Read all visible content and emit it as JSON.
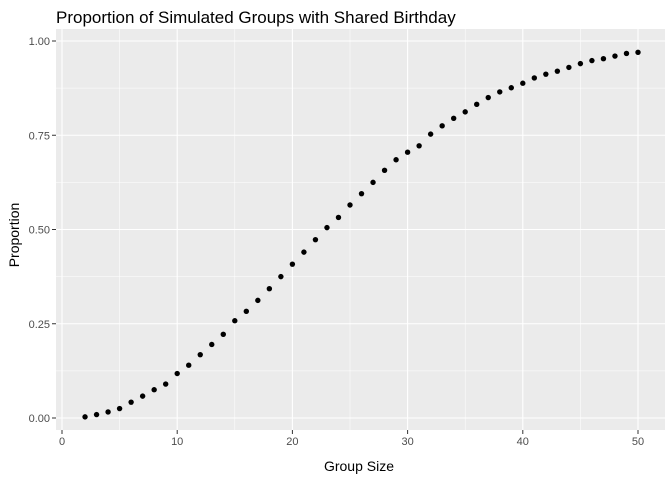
{
  "chart_data": {
    "type": "scatter",
    "title": "Proportion of Simulated Groups with Shared Birthday",
    "xlabel": "Group Size",
    "ylabel": "Proportion",
    "xlim": [
      0,
      52
    ],
    "ylim": [
      -0.01,
      1.03
    ],
    "x_ticks": [
      0,
      10,
      20,
      30,
      40,
      50
    ],
    "x_tick_labels": [
      "0",
      "10",
      "20",
      "30",
      "40",
      "50"
    ],
    "y_ticks": [
      0,
      0.25,
      0.5,
      0.75,
      1
    ],
    "y_tick_labels": [
      "0.00",
      "0.25",
      "0.50",
      "0.75",
      "1.00"
    ],
    "grid": true,
    "legend": "none",
    "colors": {
      "panel": "#ebebeb",
      "grid": "#ffffff",
      "point": "#000000"
    },
    "x": [
      2,
      3,
      4,
      5,
      6,
      7,
      8,
      9,
      10,
      11,
      12,
      13,
      14,
      15,
      16,
      17,
      18,
      19,
      20,
      21,
      22,
      23,
      24,
      25,
      26,
      27,
      28,
      29,
      30,
      31,
      32,
      33,
      34,
      35,
      36,
      37,
      38,
      39,
      40,
      41,
      42,
      43,
      44,
      45,
      46,
      47,
      48,
      49,
      50
    ],
    "y": [
      0.003,
      0.009,
      0.016,
      0.025,
      0.042,
      0.058,
      0.075,
      0.09,
      0.118,
      0.14,
      0.168,
      0.195,
      0.222,
      0.258,
      0.283,
      0.312,
      0.343,
      0.375,
      0.408,
      0.44,
      0.473,
      0.505,
      0.532,
      0.565,
      0.595,
      0.625,
      0.657,
      0.685,
      0.705,
      0.722,
      0.753,
      0.775,
      0.795,
      0.812,
      0.832,
      0.85,
      0.865,
      0.876,
      0.888,
      0.902,
      0.912,
      0.92,
      0.93,
      0.94,
      0.948,
      0.953,
      0.96,
      0.967,
      0.97
    ]
  }
}
